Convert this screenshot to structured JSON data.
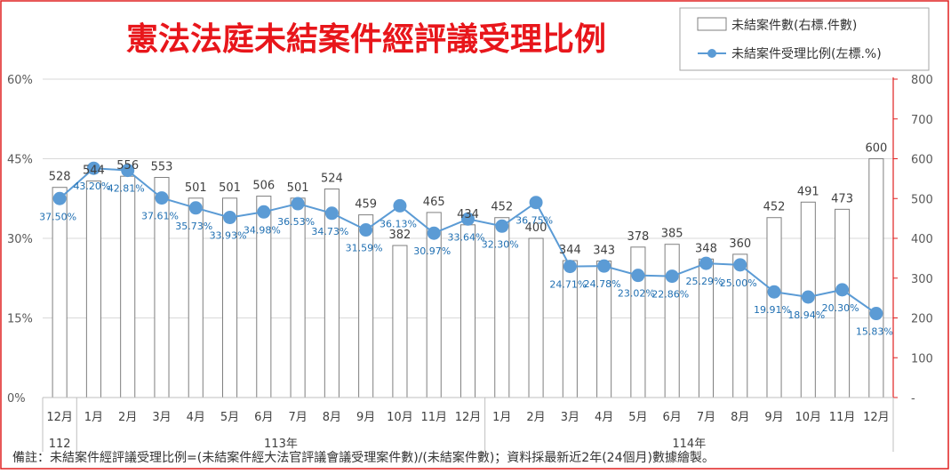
{
  "chart_data": {
    "type": "bar+line",
    "title": "憲法法庭未結案件經評議受理比例",
    "categories": [
      "12月",
      "1月",
      "2月",
      "3月",
      "4月",
      "5月",
      "6月",
      "7月",
      "8月",
      "9月",
      "10月",
      "11月",
      "12月",
      "1月",
      "2月",
      "3月",
      "4月",
      "5月",
      "6月",
      "7月",
      "8月",
      "9月",
      "10月",
      "11月",
      "12月"
    ],
    "year_groups": [
      {
        "label": "112",
        "count": 1
      },
      {
        "label": "113年",
        "count": 12
      },
      {
        "label": "114年",
        "count": 12
      }
    ],
    "series": [
      {
        "name": "未結案件數(右標.件數)",
        "type": "bar",
        "axis": "right",
        "values": [
          528,
          544,
          556,
          553,
          501,
          501,
          506,
          501,
          524,
          459,
          382,
          465,
          434,
          452,
          400,
          344,
          343,
          378,
          385,
          348,
          360,
          452,
          491,
          473,
          600
        ],
        "labels": [
          "528",
          "544",
          "556",
          "553",
          "501",
          "501",
          "506",
          "501",
          "524",
          "459",
          "382",
          "465",
          "434",
          "452",
          "400",
          "344",
          "343",
          "378",
          "385",
          "348",
          "360",
          "452",
          "491",
          "473",
          "600"
        ]
      },
      {
        "name": "未結案件受理比例(左標.%)",
        "type": "line",
        "axis": "left",
        "values": [
          37.5,
          43.2,
          42.81,
          37.61,
          35.73,
          33.93,
          34.98,
          36.53,
          34.73,
          31.59,
          36.13,
          30.97,
          33.64,
          32.3,
          36.75,
          24.71,
          24.78,
          23.02,
          22.86,
          25.29,
          25.0,
          19.91,
          18.94,
          20.3,
          15.83
        ],
        "labels": [
          "37.50%",
          "43.20%",
          "42.81%",
          "37.61%",
          "35.73%",
          "33.93%",
          "34.98%",
          "36.53%",
          "34.73%",
          "31.59%",
          "36.13%",
          "30.97%",
          "33.64%",
          "32.30%",
          "36.75%",
          "24.71%",
          "24.78%",
          "23.02%",
          "22.86%",
          "25.29%",
          "25.00%",
          "19.91%",
          "18.94%",
          "20.30%",
          "15.83%"
        ]
      }
    ],
    "left_axis": {
      "range": [
        0,
        60
      ],
      "ticks": [
        "0%",
        "15%",
        "30%",
        "45%",
        "60%"
      ]
    },
    "right_axis": {
      "range": [
        0,
        800
      ],
      "ticks": [
        "-",
        "100",
        "200",
        "300",
        "400",
        "500",
        "600",
        "700",
        "800"
      ]
    },
    "legend_position": "top-right",
    "colors": {
      "title": "#e8161b",
      "bar_fill": "#ffffff",
      "bar_stroke": "#7f7f7f",
      "line": "#5b9bd5",
      "marker": "#5b9bd5",
      "label_blue": "#1f6fb2",
      "right_axis": "#e02020",
      "frame": "#e02020",
      "grid": "#d9d9d9"
    },
    "footnote": "備註：未結案件經評議受理比例=(未結案件經大法官評議會議受理案件數)/(未結案件數)；資料採最新近2年(24個月)數據繪製。"
  }
}
